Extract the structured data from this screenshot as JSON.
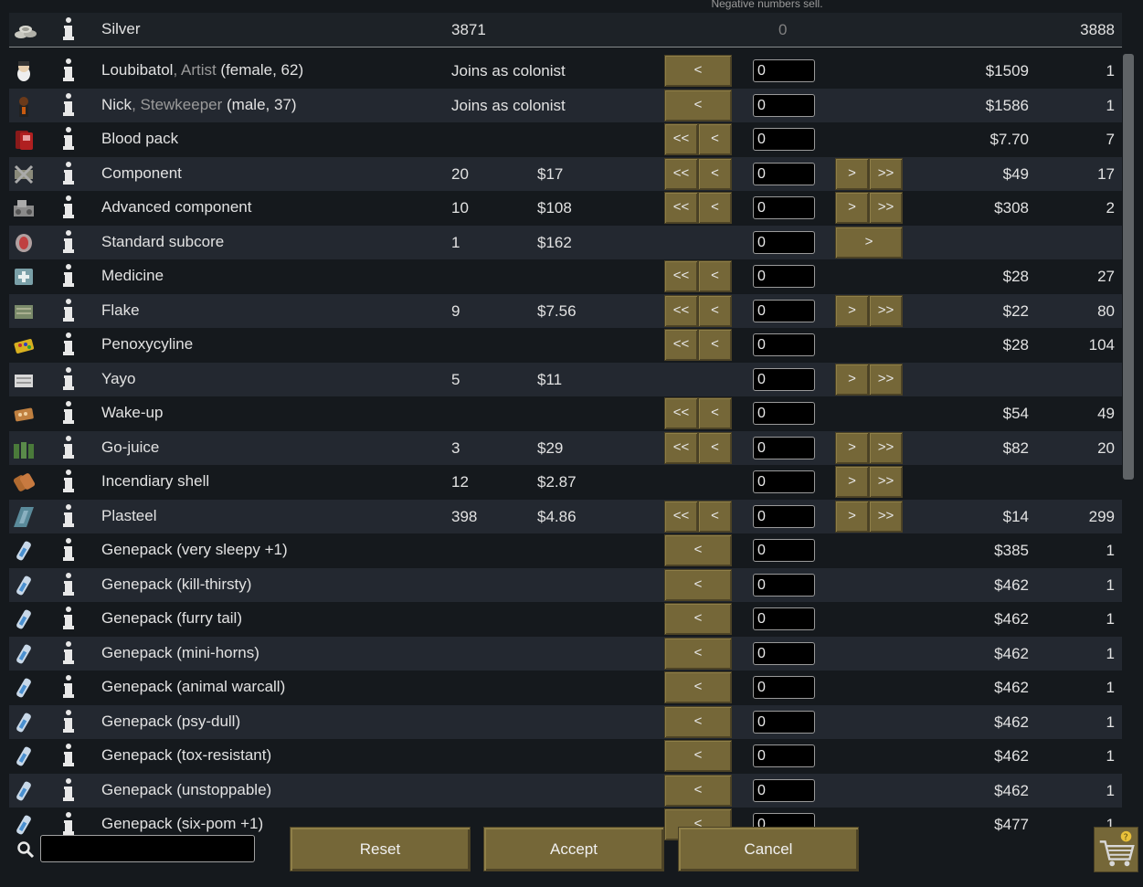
{
  "hint": "Negative numbers sell.",
  "silver": {
    "name": "Silver",
    "trader_qty": "3871",
    "offer": "0",
    "colony_qty": "3888"
  },
  "rows": [
    {
      "name": "Loubibatol",
      "sub": ", Artist",
      "tail": " (female, 62)",
      "c1": "Joins as colonist",
      "c2": "",
      "left": "<",
      "right": "",
      "qty": "0",
      "price": "$1509",
      "count": "1",
      "icon": "pawn-female-icon"
    },
    {
      "name": "Nick",
      "sub": ", Stewkeeper",
      "tail": " (male, 37)",
      "c1": "Joins as colonist",
      "c2": "",
      "left": "<",
      "right": "",
      "qty": "0",
      "price": "$1586",
      "count": "1",
      "icon": "pawn-male-icon"
    },
    {
      "name": "Blood pack",
      "sub": "",
      "tail": "",
      "c1": "",
      "c2": "",
      "left": "<<<",
      "right": "",
      "qty": "0",
      "price": "$7.70",
      "count": "7",
      "icon": "blood-pack-icon"
    },
    {
      "name": "Component",
      "sub": "",
      "tail": "",
      "c1": "20",
      "c2": "$17",
      "left": "<<<",
      "right": ">>>",
      "qty": "0",
      "price": "$49",
      "count": "17",
      "icon": "component-icon"
    },
    {
      "name": "Advanced component",
      "sub": "",
      "tail": "",
      "c1": "10",
      "c2": "$108",
      "left": "<<<",
      "right": ">>>",
      "qty": "0",
      "price": "$308",
      "count": "2",
      "icon": "advanced-component-icon"
    },
    {
      "name": "Standard subcore",
      "sub": "",
      "tail": "",
      "c1": "1",
      "c2": "$162",
      "left": "",
      "right": ">",
      "qty": "0",
      "price": "",
      "count": "",
      "icon": "subcore-icon"
    },
    {
      "name": "Medicine",
      "sub": "",
      "tail": "",
      "c1": "",
      "c2": "",
      "left": "<<<",
      "right": "",
      "qty": "0",
      "price": "$28",
      "count": "27",
      "icon": "medicine-icon"
    },
    {
      "name": "Flake",
      "sub": "",
      "tail": "",
      "c1": "9",
      "c2": "$7.56",
      "left": "<<<",
      "right": ">>>",
      "qty": "0",
      "price": "$22",
      "count": "80",
      "icon": "flake-icon"
    },
    {
      "name": "Penoxycyline",
      "sub": "",
      "tail": "",
      "c1": "",
      "c2": "",
      "left": "<<<",
      "right": "",
      "qty": "0",
      "price": "$28",
      "count": "104",
      "icon": "pills-icon"
    },
    {
      "name": "Yayo",
      "sub": "",
      "tail": "",
      "c1": "5",
      "c2": "$11",
      "left": "",
      "right": ">>>",
      "qty": "0",
      "price": "",
      "count": "",
      "icon": "yayo-icon"
    },
    {
      "name": "Wake-up",
      "sub": "",
      "tail": "",
      "c1": "",
      "c2": "",
      "left": "<<<",
      "right": "",
      "qty": "0",
      "price": "$54",
      "count": "49",
      "icon": "wake-up-icon"
    },
    {
      "name": "Go-juice",
      "sub": "",
      "tail": "",
      "c1": "3",
      "c2": "$29",
      "left": "<<<",
      "right": ">>>",
      "qty": "0",
      "price": "$82",
      "count": "20",
      "icon": "go-juice-icon"
    },
    {
      "name": "Incendiary shell",
      "sub": "",
      "tail": "",
      "c1": "12",
      "c2": "$2.87",
      "left": "",
      "right": ">>>",
      "qty": "0",
      "price": "",
      "count": "",
      "icon": "shell-icon"
    },
    {
      "name": "Plasteel",
      "sub": "",
      "tail": "",
      "c1": "398",
      "c2": "$4.86",
      "left": "<<<",
      "right": ">>>",
      "qty": "0",
      "price": "$14",
      "count": "299",
      "icon": "plasteel-icon"
    },
    {
      "name": "Genepack (very sleepy +1)",
      "sub": "",
      "tail": "",
      "c1": "",
      "c2": "",
      "left": "<",
      "right": "",
      "qty": "0",
      "price": "$385",
      "count": "1",
      "icon": "genepack-icon"
    },
    {
      "name": "Genepack (kill-thirsty)",
      "sub": "",
      "tail": "",
      "c1": "",
      "c2": "",
      "left": "<",
      "right": "",
      "qty": "0",
      "price": "$462",
      "count": "1",
      "icon": "genepack-icon"
    },
    {
      "name": "Genepack (furry tail)",
      "sub": "",
      "tail": "",
      "c1": "",
      "c2": "",
      "left": "<",
      "right": "",
      "qty": "0",
      "price": "$462",
      "count": "1",
      "icon": "genepack-icon"
    },
    {
      "name": "Genepack (mini-horns)",
      "sub": "",
      "tail": "",
      "c1": "",
      "c2": "",
      "left": "<",
      "right": "",
      "qty": "0",
      "price": "$462",
      "count": "1",
      "icon": "genepack-icon"
    },
    {
      "name": "Genepack (animal warcall)",
      "sub": "",
      "tail": "",
      "c1": "",
      "c2": "",
      "left": "<",
      "right": "",
      "qty": "0",
      "price": "$462",
      "count": "1",
      "icon": "genepack-icon"
    },
    {
      "name": "Genepack (psy-dull)",
      "sub": "",
      "tail": "",
      "c1": "",
      "c2": "",
      "left": "<",
      "right": "",
      "qty": "0",
      "price": "$462",
      "count": "1",
      "icon": "genepack-icon"
    },
    {
      "name": "Genepack (tox-resistant)",
      "sub": "",
      "tail": "",
      "c1": "",
      "c2": "",
      "left": "<",
      "right": "",
      "qty": "0",
      "price": "$462",
      "count": "1",
      "icon": "genepack-icon"
    },
    {
      "name": "Genepack (unstoppable)",
      "sub": "",
      "tail": "",
      "c1": "",
      "c2": "",
      "left": "<",
      "right": "",
      "qty": "0",
      "price": "$462",
      "count": "1",
      "icon": "genepack-icon"
    },
    {
      "name": "Genepack (six-pom +1)",
      "sub": "",
      "tail": "",
      "c1": "",
      "c2": "",
      "left": "<",
      "right": "",
      "qty": "0",
      "price": "$477",
      "count": "1",
      "icon": "genepack-icon"
    }
  ],
  "buttons": {
    "reset": "Reset",
    "accept": "Accept",
    "cancel": "Cancel"
  },
  "search": {
    "value": ""
  },
  "icons": {
    "info": "info-icon",
    "search": "search-icon",
    "cart": "trade-cart-icon",
    "silver": "silver-icon"
  }
}
